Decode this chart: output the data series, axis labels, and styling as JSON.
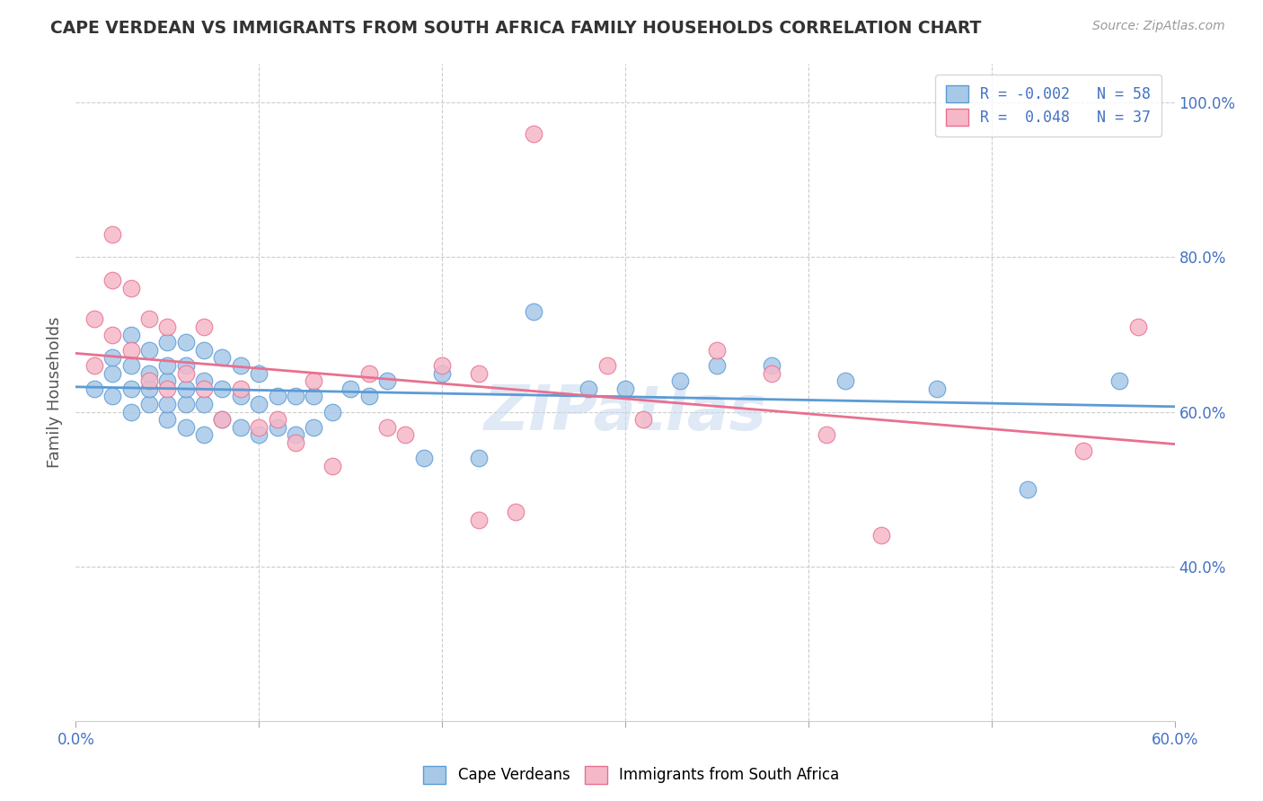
{
  "title": "CAPE VERDEAN VS IMMIGRANTS FROM SOUTH AFRICA FAMILY HOUSEHOLDS CORRELATION CHART",
  "source": "Source: ZipAtlas.com",
  "ylabel": "Family Households",
  "x_min": 0.0,
  "x_max": 0.6,
  "y_min": 0.2,
  "y_max": 1.05,
  "color_blue": "#A8C8E8",
  "color_pink": "#F5B8C8",
  "line_color_blue": "#5B9BD5",
  "line_color_pink": "#E87090",
  "watermark": "ZIPatlas",
  "blue_scatter_x": [
    0.01,
    0.02,
    0.02,
    0.02,
    0.03,
    0.03,
    0.03,
    0.03,
    0.04,
    0.04,
    0.04,
    0.04,
    0.05,
    0.05,
    0.05,
    0.05,
    0.05,
    0.06,
    0.06,
    0.06,
    0.06,
    0.06,
    0.07,
    0.07,
    0.07,
    0.07,
    0.08,
    0.08,
    0.08,
    0.09,
    0.09,
    0.09,
    0.1,
    0.1,
    0.1,
    0.11,
    0.11,
    0.12,
    0.12,
    0.13,
    0.13,
    0.14,
    0.15,
    0.16,
    0.17,
    0.19,
    0.2,
    0.22,
    0.25,
    0.28,
    0.3,
    0.33,
    0.35,
    0.38,
    0.42,
    0.47,
    0.52,
    0.57
  ],
  "blue_scatter_y": [
    0.63,
    0.62,
    0.65,
    0.67,
    0.6,
    0.63,
    0.66,
    0.7,
    0.61,
    0.63,
    0.65,
    0.68,
    0.59,
    0.61,
    0.64,
    0.66,
    0.69,
    0.58,
    0.61,
    0.63,
    0.66,
    0.69,
    0.57,
    0.61,
    0.64,
    0.68,
    0.59,
    0.63,
    0.67,
    0.58,
    0.62,
    0.66,
    0.57,
    0.61,
    0.65,
    0.58,
    0.62,
    0.57,
    0.62,
    0.58,
    0.62,
    0.6,
    0.63,
    0.62,
    0.64,
    0.54,
    0.65,
    0.54,
    0.73,
    0.63,
    0.63,
    0.64,
    0.66,
    0.66,
    0.64,
    0.63,
    0.5,
    0.64
  ],
  "pink_scatter_x": [
    0.01,
    0.01,
    0.02,
    0.02,
    0.02,
    0.03,
    0.03,
    0.04,
    0.04,
    0.05,
    0.05,
    0.06,
    0.07,
    0.07,
    0.08,
    0.09,
    0.1,
    0.11,
    0.12,
    0.13,
    0.14,
    0.16,
    0.17,
    0.18,
    0.2,
    0.22,
    0.24,
    0.25,
    0.29,
    0.31,
    0.35,
    0.38,
    0.41,
    0.44,
    0.55,
    0.58,
    0.22
  ],
  "pink_scatter_y": [
    0.66,
    0.72,
    0.7,
    0.77,
    0.83,
    0.68,
    0.76,
    0.64,
    0.72,
    0.63,
    0.71,
    0.65,
    0.63,
    0.71,
    0.59,
    0.63,
    0.58,
    0.59,
    0.56,
    0.64,
    0.53,
    0.65,
    0.58,
    0.57,
    0.66,
    0.65,
    0.47,
    0.96,
    0.66,
    0.59,
    0.68,
    0.65,
    0.57,
    0.44,
    0.55,
    0.71,
    0.46
  ]
}
